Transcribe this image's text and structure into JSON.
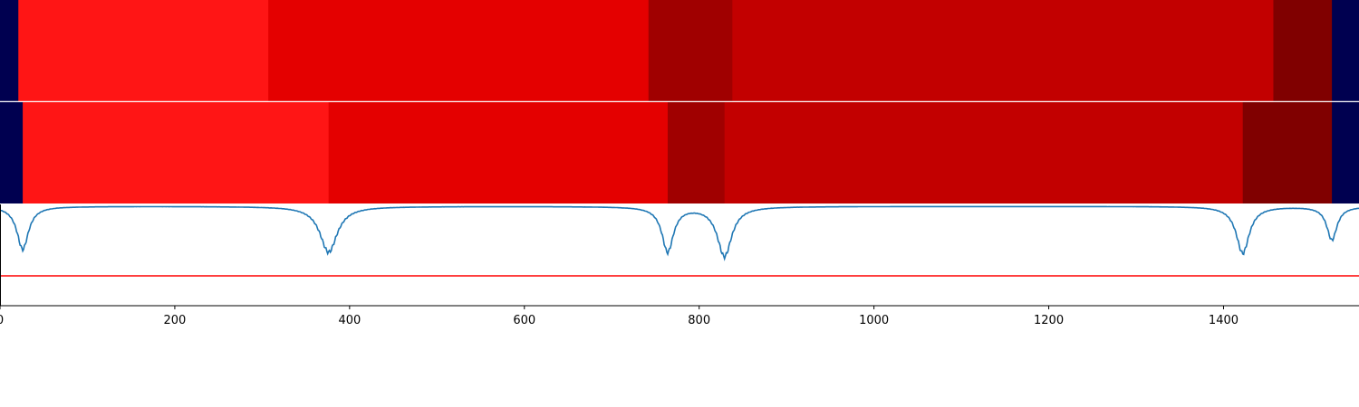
{
  "chart_data": [
    {
      "type": "heatmap",
      "panel": "top",
      "xlim": [
        0,
        1555
      ],
      "segments": [
        {
          "start": 0,
          "end": 21,
          "color": "#000050"
        },
        {
          "start": 21,
          "end": 307,
          "color": "#ff1515"
        },
        {
          "start": 307,
          "end": 742,
          "color": "#e40000"
        },
        {
          "start": 742,
          "end": 838,
          "color": "#a00000"
        },
        {
          "start": 838,
          "end": 1457,
          "color": "#c20000"
        },
        {
          "start": 1457,
          "end": 1524,
          "color": "#800000"
        },
        {
          "start": 1524,
          "end": 1555,
          "color": "#000050"
        }
      ]
    },
    {
      "type": "heatmap",
      "panel": "middle",
      "xlim": [
        0,
        1555
      ],
      "segments": [
        {
          "start": 0,
          "end": 26,
          "color": "#000050"
        },
        {
          "start": 26,
          "end": 376,
          "color": "#ff1515"
        },
        {
          "start": 376,
          "end": 764,
          "color": "#e40000"
        },
        {
          "start": 764,
          "end": 829,
          "color": "#a00000"
        },
        {
          "start": 829,
          "end": 1422,
          "color": "#c20000"
        },
        {
          "start": 1422,
          "end": 1524,
          "color": "#800000"
        },
        {
          "start": 1524,
          "end": 1555,
          "color": "#000050"
        }
      ]
    },
    {
      "type": "line",
      "panel": "bottom",
      "xlim": [
        0,
        1555
      ],
      "ylim": [
        -1.0,
        0.02
      ],
      "grid": false,
      "xticks": [
        0,
        200,
        400,
        600,
        800,
        1000,
        1200,
        1400
      ],
      "xtick_labels": [
        "0",
        "200",
        "400",
        "600",
        "800",
        "1000",
        "1200",
        "1400"
      ],
      "threshold": {
        "y": -0.7,
        "color": "#ff0000"
      },
      "series": [
        {
          "color": "#1f77b4",
          "dips": [
            {
              "center": 26,
              "depth": 0.45,
              "width": 8
            },
            {
              "center": 376,
              "depth": 0.48,
              "width": 12
            },
            {
              "center": 764,
              "depth": 0.47,
              "width": 8
            },
            {
              "center": 829,
              "depth": 0.52,
              "width": 10
            },
            {
              "center": 1422,
              "depth": 0.49,
              "width": 9
            },
            {
              "center": 1524,
              "depth": 0.35,
              "width": 7
            }
          ]
        }
      ]
    }
  ]
}
